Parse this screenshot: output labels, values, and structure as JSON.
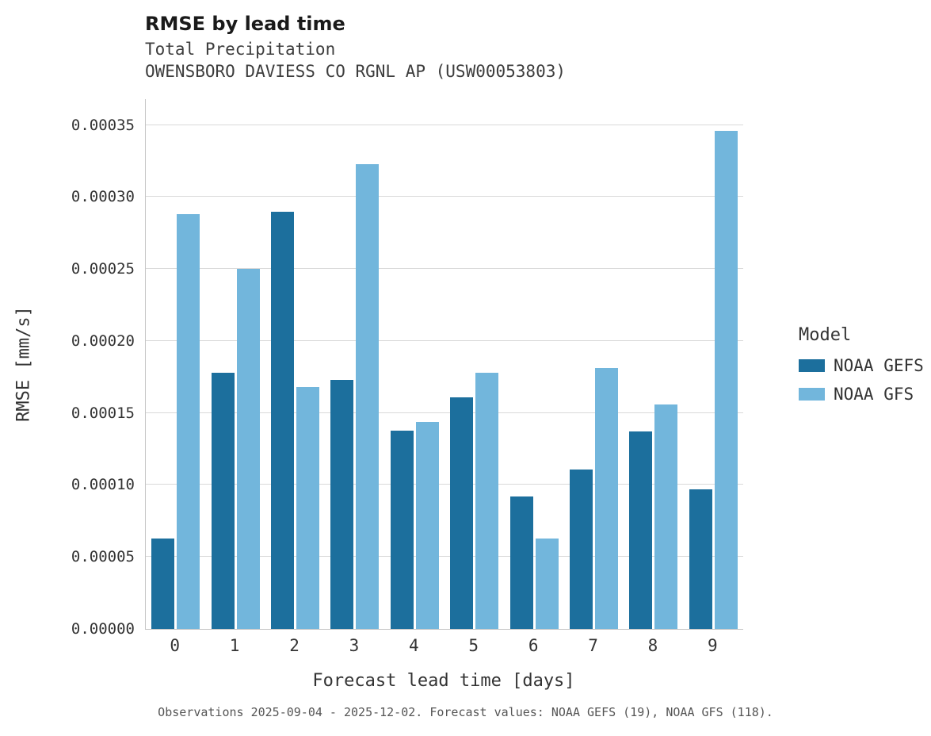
{
  "title": "RMSE by lead time",
  "subtitle": "Total Precipitation",
  "station": "OWENSBORO DAVIESS CO RGNL AP (USW00053803)",
  "caption": "Observations 2025-09-04 - 2025-12-02. Forecast values: NOAA GEFS (19), NOAA GFS (118).",
  "legend": {
    "title": "Model",
    "entries": [
      "NOAA GEFS",
      "NOAA GFS"
    ]
  },
  "colors": {
    "gefs": "#1c6f9d",
    "gfs": "#72b6dc",
    "grid": "#d9d9d9",
    "axis": "#c6c6c6",
    "text": "#333333"
  },
  "chart_data": {
    "type": "bar",
    "title": "RMSE by lead time",
    "subtitle": "Total Precipitation",
    "station": "OWENSBORO DAVIESS CO RGNL AP (USW00053803)",
    "xlabel": "Forecast lead time [days]",
    "ylabel": "RMSE [mm/s]",
    "categories": [
      "0",
      "1",
      "2",
      "3",
      "4",
      "5",
      "6",
      "7",
      "8",
      "9"
    ],
    "series": [
      {
        "name": "NOAA GEFS",
        "color": "#1c6f9d",
        "values": [
          6.3e-05,
          0.000178,
          0.00029,
          0.000173,
          0.000138,
          0.000161,
          9.2e-05,
          0.000111,
          0.000137,
          9.7e-05
        ]
      },
      {
        "name": "NOAA GFS",
        "color": "#72b6dc",
        "values": [
          0.000288,
          0.00025,
          0.000168,
          0.000323,
          0.000144,
          0.000178,
          6.3e-05,
          0.000181,
          0.000156,
          0.000346
        ]
      }
    ],
    "ylim": [
      0,
      0.00035
    ],
    "ymax_plot": 0.000368,
    "ytick_step": 5e-05,
    "ytick_decimals": 5,
    "grid": true,
    "legend_position": "right"
  }
}
